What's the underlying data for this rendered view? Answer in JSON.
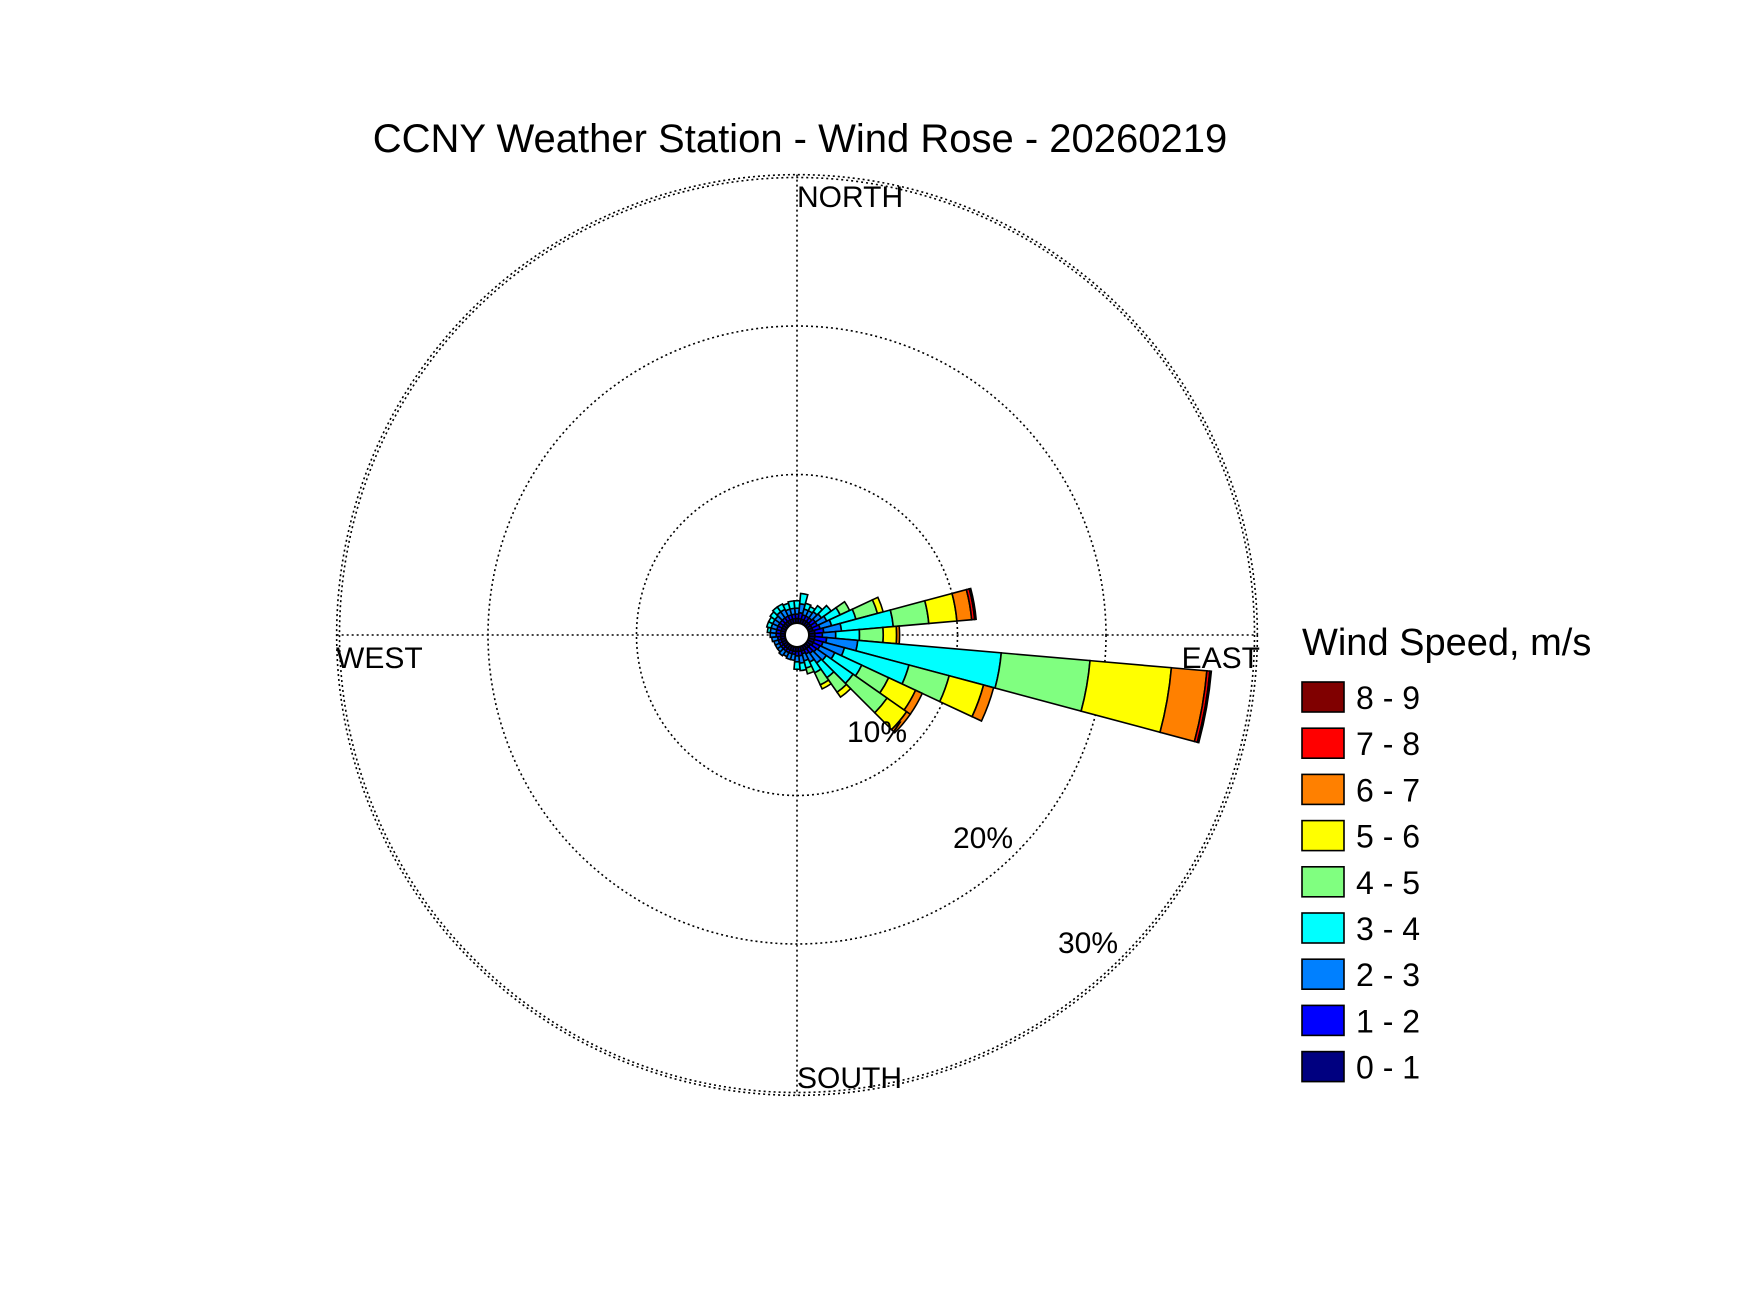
{
  "chart_data": {
    "type": "wind-rose",
    "title": "CCNY Weather Station - Wind Rose - 20260219",
    "directions": {
      "north": "NORTH",
      "south": "SOUTH",
      "east": "EAST",
      "west": "WEST"
    },
    "radial_ticks": [
      {
        "value": 10,
        "label": "10%"
      },
      {
        "value": 20,
        "label": "20%"
      },
      {
        "value": 30,
        "label": "30%"
      }
    ],
    "radial_max": 31,
    "sector_width_deg": 10,
    "grid": true,
    "legend": {
      "title": "Wind Speed, m/s",
      "placement": "right",
      "bins": [
        {
          "label": "8 - 9",
          "color": "#800000"
        },
        {
          "label": "7 - 8",
          "color": "#ff0000"
        },
        {
          "label": "6 - 7",
          "color": "#ff8000"
        },
        {
          "label": "5 - 6",
          "color": "#ffff00"
        },
        {
          "label": "4 - 5",
          "color": "#80ff80"
        },
        {
          "label": "3 - 4",
          "color": "#00ffff"
        },
        {
          "label": "2 - 3",
          "color": "#0080ff"
        },
        {
          "label": "1 - 2",
          "color": "#0000ff"
        },
        {
          "label": "0 - 1",
          "color": "#000080"
        }
      ]
    },
    "speed_bins_low_to_high": [
      "0 - 1",
      "1 - 2",
      "2 - 3",
      "3 - 4",
      "4 - 5",
      "5 - 6",
      "6 - 7",
      "7 - 8",
      "8 - 9"
    ],
    "sectors": [
      {
        "direction_deg": 0,
        "cumulative_percent": [
          0.3,
          0.6,
          1.0,
          1.5
        ]
      },
      {
        "direction_deg": 10,
        "cumulative_percent": [
          0.3,
          0.7,
          1.3,
          2.0
        ]
      },
      {
        "direction_deg": 20,
        "cumulative_percent": [
          0.3,
          0.6,
          1.0,
          1.4
        ]
      },
      {
        "direction_deg": 30,
        "cumulative_percent": [
          0.3,
          0.6,
          1.0,
          1.3
        ]
      },
      {
        "direction_deg": 40,
        "cumulative_percent": [
          0.3,
          0.6,
          1.1,
          1.6
        ]
      },
      {
        "direction_deg": 50,
        "cumulative_percent": [
          0.3,
          0.7,
          1.2,
          2.0
        ]
      },
      {
        "direction_deg": 60,
        "cumulative_percent": [
          0.3,
          0.7,
          1.4,
          2.4,
          3.1
        ]
      },
      {
        "direction_deg": 70,
        "cumulative_percent": [
          0.3,
          0.8,
          1.6,
          3.3,
          4.8,
          5.2
        ]
      },
      {
        "direction_deg": 80,
        "cumulative_percent": [
          0.4,
          1.0,
          2.2,
          5.7,
          8.1,
          10.0,
          11.0,
          11.2,
          11.3
        ]
      },
      {
        "direction_deg": 90,
        "cumulative_percent": [
          0.4,
          0.9,
          1.8,
          3.4,
          5.0,
          5.9,
          6.1
        ]
      },
      {
        "direction_deg": 100,
        "cumulative_percent": [
          0.4,
          1.2,
          3.3,
          13.0,
          19.0,
          24.5,
          26.9,
          27.1,
          27.2
        ]
      },
      {
        "direction_deg": 110,
        "cumulative_percent": [
          0.4,
          1.0,
          2.5,
          7.0,
          9.8,
          12.2,
          12.9
        ]
      },
      {
        "direction_deg": 120,
        "cumulative_percent": [
          0.4,
          0.9,
          2.0,
          4.0,
          6.0,
          8.0,
          8.5
        ]
      },
      {
        "direction_deg": 130,
        "cumulative_percent": [
          0.3,
          0.8,
          1.6,
          3.8,
          6.6,
          8.2,
          8.5
        ]
      },
      {
        "direction_deg": 140,
        "cumulative_percent": [
          0.3,
          0.7,
          1.5,
          2.7,
          3.9,
          4.3
        ]
      },
      {
        "direction_deg": 150,
        "cumulative_percent": [
          0.3,
          0.6,
          1.2,
          2.0,
          2.9,
          3.2
        ]
      },
      {
        "direction_deg": 160,
        "cumulative_percent": [
          0.3,
          0.5,
          1.0,
          1.5,
          1.9
        ]
      },
      {
        "direction_deg": 170,
        "cumulative_percent": [
          0.3,
          0.6,
          1.1,
          1.6
        ]
      },
      {
        "direction_deg": 180,
        "cumulative_percent": [
          0.3,
          0.6,
          1.0,
          1.5
        ]
      },
      {
        "direction_deg": 190,
        "cumulative_percent": [
          0.3,
          0.5,
          0.9
        ]
      },
      {
        "direction_deg": 200,
        "cumulative_percent": [
          0.3,
          0.5,
          0.9
        ]
      },
      {
        "direction_deg": 210,
        "cumulative_percent": [
          0.3,
          0.5,
          0.8
        ]
      },
      {
        "direction_deg": 220,
        "cumulative_percent": [
          0.3,
          0.5,
          0.9
        ]
      },
      {
        "direction_deg": 230,
        "cumulative_percent": [
          0.3,
          0.5,
          0.8
        ]
      },
      {
        "direction_deg": 240,
        "cumulative_percent": [
          0.3,
          0.5,
          0.8
        ]
      },
      {
        "direction_deg": 250,
        "cumulative_percent": [
          0.3,
          0.5,
          0.8
        ]
      },
      {
        "direction_deg": 260,
        "cumulative_percent": [
          0.3,
          0.5,
          0.9
        ]
      },
      {
        "direction_deg": 270,
        "cumulative_percent": [
          0.3,
          0.6,
          1.0
        ]
      },
      {
        "direction_deg": 280,
        "cumulative_percent": [
          0.3,
          0.6,
          1.0,
          1.2
        ]
      },
      {
        "direction_deg": 290,
        "cumulative_percent": [
          0.3,
          0.6,
          1.0,
          1.3
        ]
      },
      {
        "direction_deg": 300,
        "cumulative_percent": [
          0.3,
          0.6,
          1.0,
          1.3
        ]
      },
      {
        "direction_deg": 310,
        "cumulative_percent": [
          0.3,
          0.6,
          1.0,
          1.4
        ]
      },
      {
        "direction_deg": 320,
        "cumulative_percent": [
          0.3,
          0.6,
          1.1,
          1.5
        ]
      },
      {
        "direction_deg": 330,
        "cumulative_percent": [
          0.3,
          0.6,
          1.1,
          1.5
        ]
      },
      {
        "direction_deg": 340,
        "cumulative_percent": [
          0.3,
          0.6,
          1.0,
          1.4
        ]
      },
      {
        "direction_deg": 350,
        "cumulative_percent": [
          0.3,
          0.6,
          1.0,
          1.5
        ]
      }
    ]
  }
}
